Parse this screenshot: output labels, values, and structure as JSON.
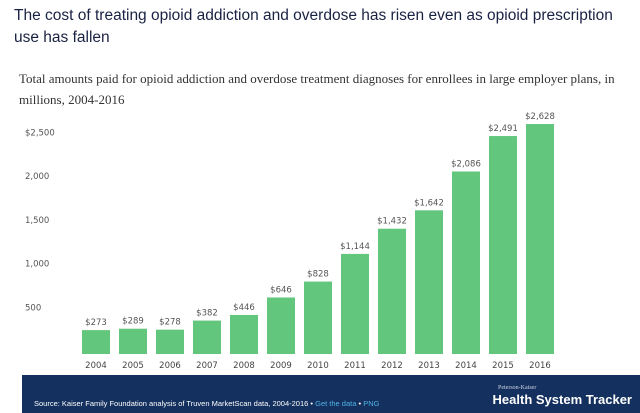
{
  "title": "The cost of treating opioid addiction and overdose has risen even as opioid prescription use has fallen",
  "chart_data": {
    "type": "bar",
    "title": "Total amounts paid for opioid addiction and overdose treatment diagnoses for enrollees in large employer plans, in millions, 2004-2016",
    "categories": [
      "2004",
      "2005",
      "2006",
      "2007",
      "2008",
      "2009",
      "2010",
      "2011",
      "2012",
      "2013",
      "2014",
      "2015",
      "2016"
    ],
    "values": [
      273,
      289,
      278,
      382,
      446,
      646,
      828,
      1144,
      1432,
      1642,
      2086,
      2491,
      2628
    ],
    "data_labels": [
      "$273",
      "$289",
      "$278",
      "$382",
      "$446",
      "$646",
      "$828",
      "$1,144",
      "$1,432",
      "$1,642",
      "$2,086",
      "$2,491",
      "$2,628"
    ],
    "yticks": [
      500,
      1000,
      1500,
      2000,
      2500
    ],
    "ytick_labels": [
      "500",
      "1,000",
      "1,500",
      "2,000",
      "$2,500"
    ],
    "ylim": [
      0,
      2700
    ],
    "grid": false,
    "bar_color": "#62c67c"
  },
  "footer": {
    "source": "Source: Kaiser Family Foundation analysis of Truven MarketScan data, 2004-2016",
    "sep": " • ",
    "get_data": "Get the data",
    "png": "PNG",
    "brand_small": "Peterson-Kaiser",
    "brand": "Health System Tracker",
    "background": "#14305e"
  }
}
